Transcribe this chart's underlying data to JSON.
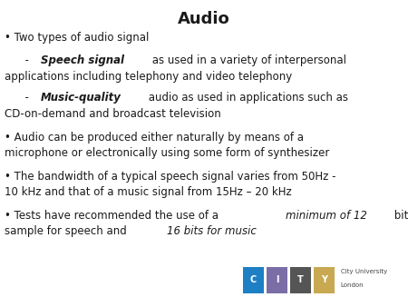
{
  "title": "Audio",
  "background_color": "#ffffff",
  "text_color": "#1a1a1a",
  "title_fontsize": 13,
  "body_fontsize": 8.5,
  "city_logo_colors": [
    "#1e7fc4",
    "#7b6ea6",
    "#555555",
    "#c8a951"
  ],
  "city_logo_letters": [
    "C",
    "I",
    "T",
    "Y"
  ],
  "city_text1": "City University",
  "city_text2": "London"
}
